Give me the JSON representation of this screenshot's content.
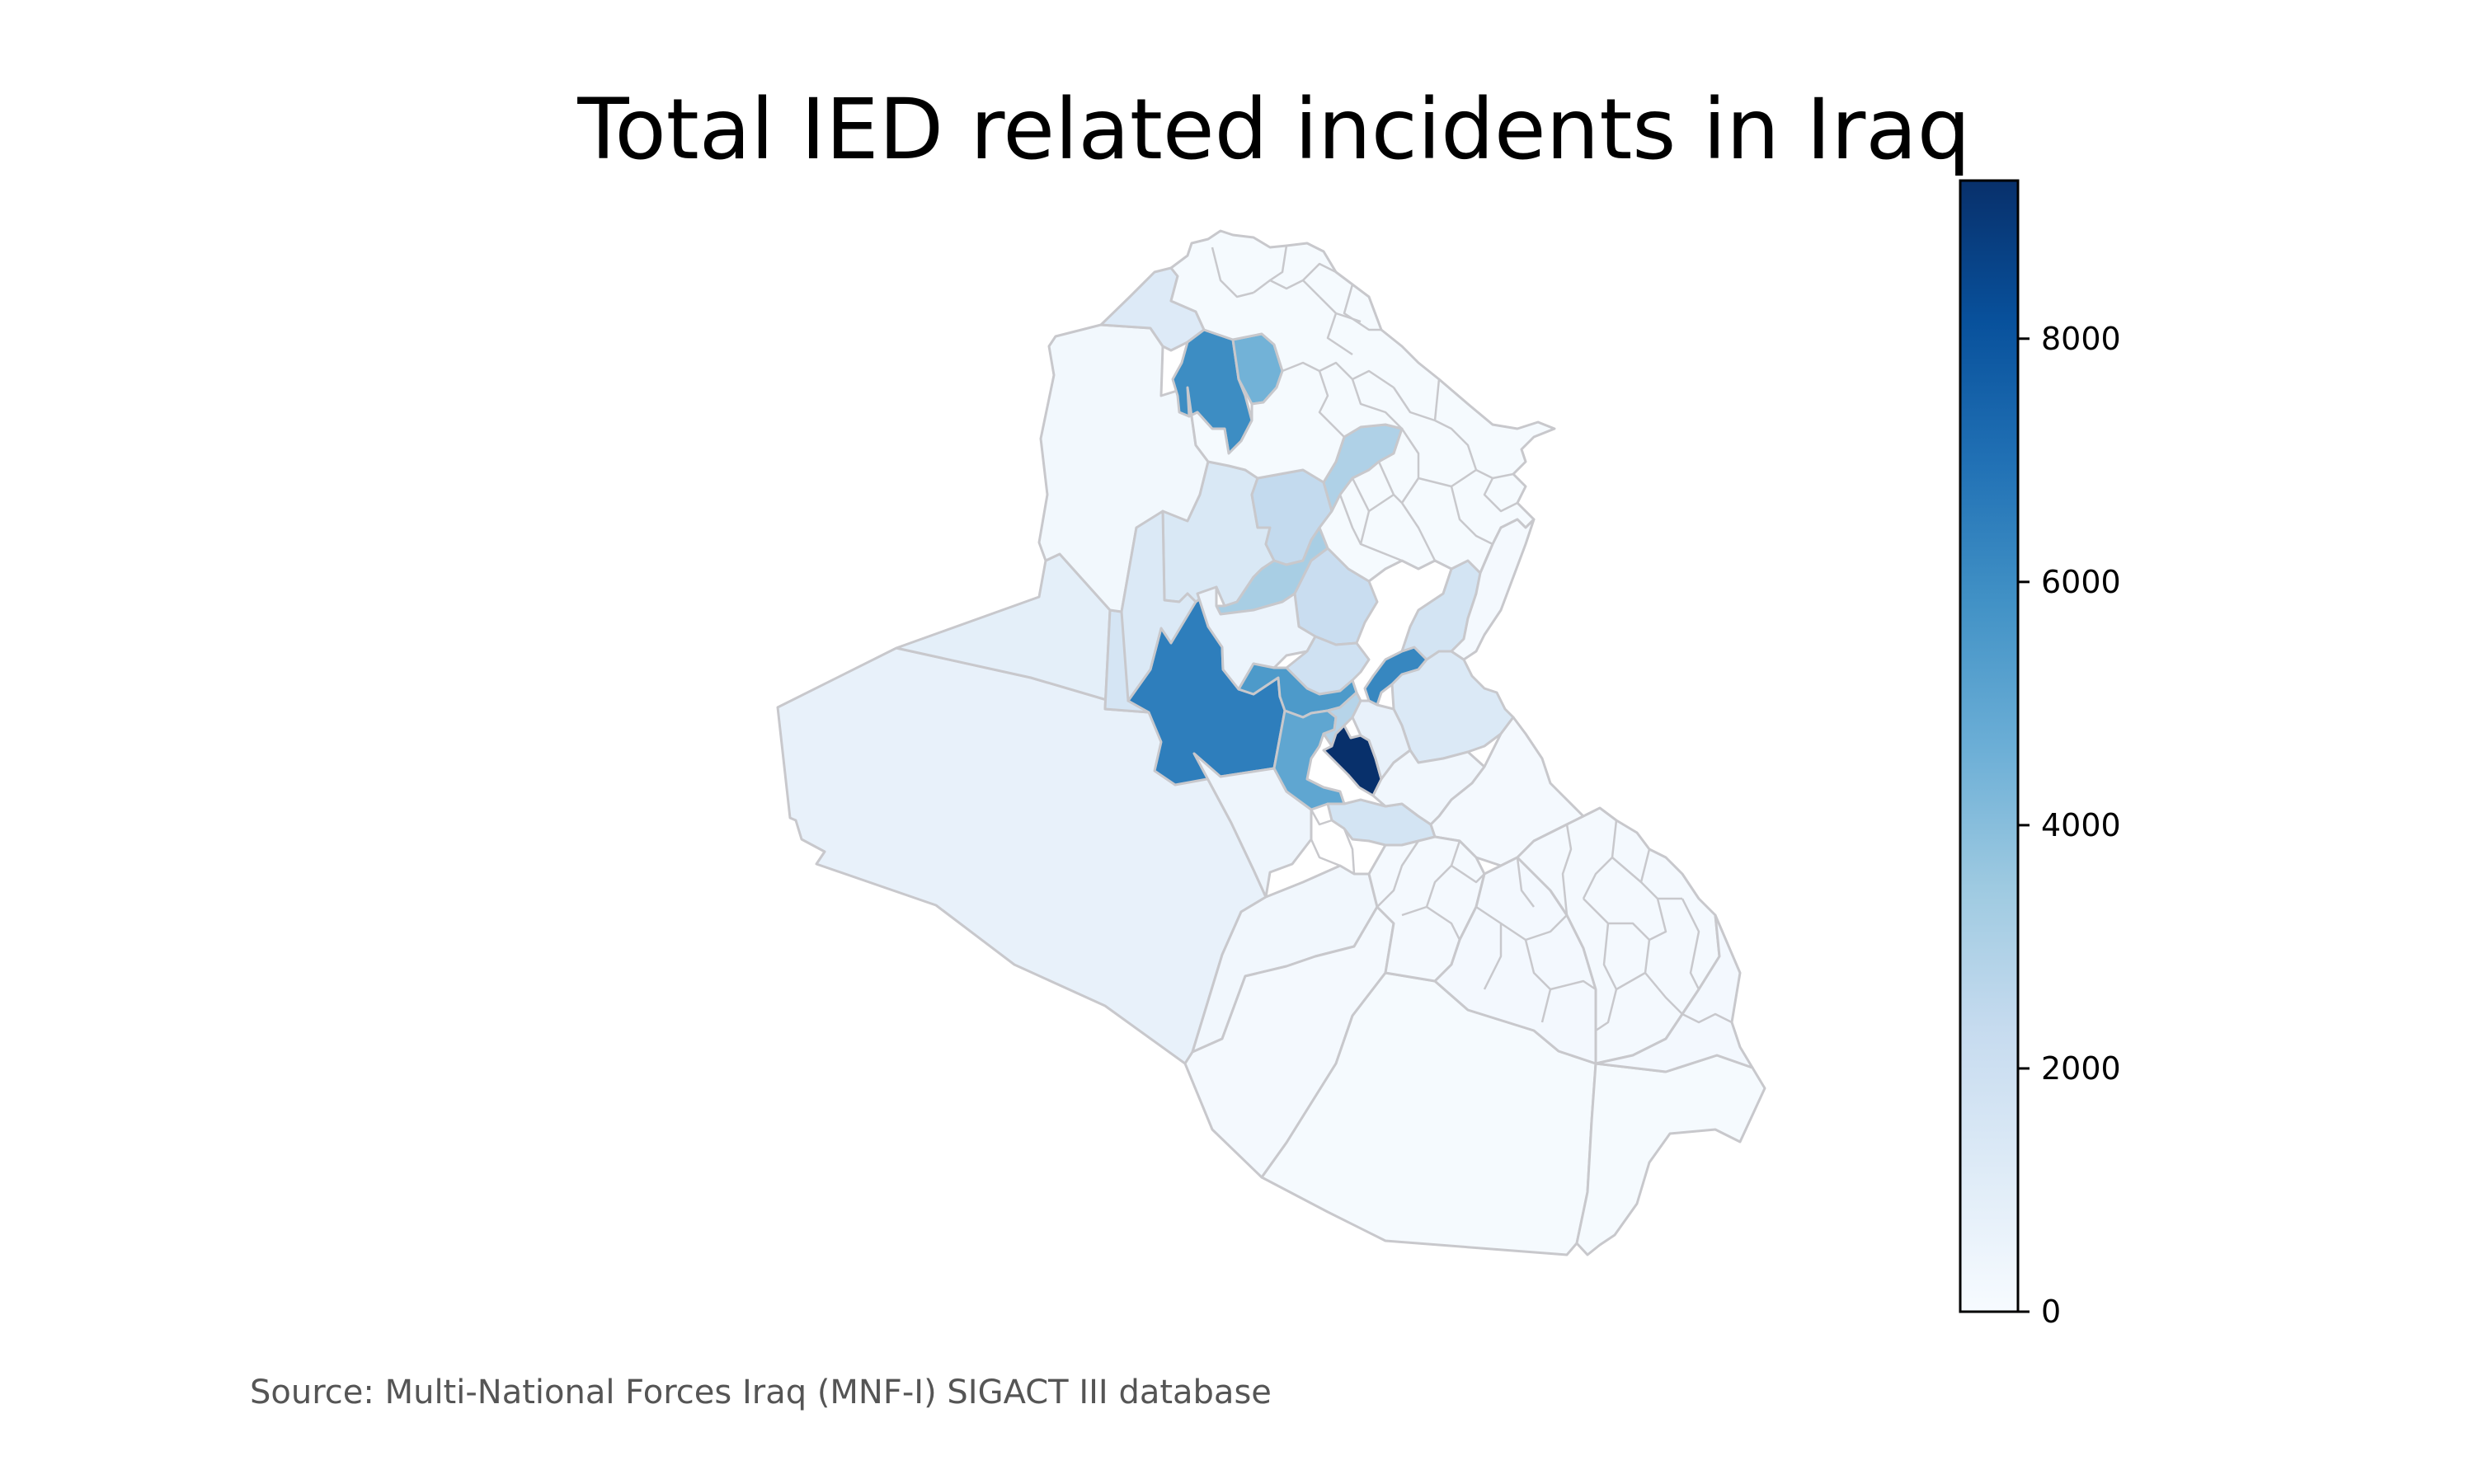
{
  "title": "Total IED related incidents in Iraq",
  "source": "Source: Multi-National Forces Iraq (MNF-I) SIGACT III database",
  "colorbar": {
    "colormap": "Blues",
    "min": 0,
    "max": 9300,
    "ticks": [
      "0",
      "2000",
      "4000",
      "6000",
      "8000"
    ],
    "tick_values": [
      0,
      2000,
      4000,
      6000,
      8000
    ]
  },
  "colors": {
    "border": "#c8c8cc",
    "scale": [
      "#f7fbff",
      "#deebf7",
      "#c6dbef",
      "#9ecae1",
      "#6baed6",
      "#4292c6",
      "#2171b5",
      "#08519c",
      "#08306b"
    ]
  },
  "districts": [
    {
      "id": "anbar-west",
      "value": 700
    },
    {
      "id": "anbar-northwest",
      "value": 900
    },
    {
      "id": "qaim-rawa",
      "value": 1600
    },
    {
      "id": "ramadi-fallujah",
      "value": 6500
    },
    {
      "id": "karbala-west",
      "value": 400
    },
    {
      "id": "nukhayb",
      "value": 300
    },
    {
      "id": "najaf-desert",
      "value": 150
    },
    {
      "id": "muthanna",
      "value": 100
    },
    {
      "id": "basra-south",
      "value": 100
    },
    {
      "id": "ninewa-west",
      "value": 250
    },
    {
      "id": "ninewa-northwest",
      "value": 1200
    },
    {
      "id": "mosul",
      "value": 6000
    },
    {
      "id": "tel-kaif",
      "value": 4500
    },
    {
      "id": "baiji-hatra",
      "value": 1400
    },
    {
      "id": "haditha",
      "value": 1300
    },
    {
      "id": "salah-aldin-west",
      "value": 2400
    },
    {
      "id": "kirkuk-hawija",
      "value": 3000
    },
    {
      "id": "tikrit",
      "value": 3200
    },
    {
      "id": "samarra",
      "value": 2200
    },
    {
      "id": "tharthar",
      "value": 500
    },
    {
      "id": "balad-dujail",
      "value": 1900
    },
    {
      "id": "abu-ghraib",
      "value": 5500
    },
    {
      "id": "baqubah",
      "value": 6200
    },
    {
      "id": "diyala-north",
      "value": 1700
    },
    {
      "id": "khanaqin",
      "value": 1300
    },
    {
      "id": "mahmudiya",
      "value": 5000
    },
    {
      "id": "baghdad-center",
      "value": 9300
    },
    {
      "id": "baghdad-west",
      "value": 2800
    },
    {
      "id": "madain",
      "value": 700
    },
    {
      "id": "hilla-mahawil",
      "value": 1700
    },
    {
      "id": "kut",
      "value": 300
    },
    {
      "id": "kurdistan-region",
      "value": 100
    },
    {
      "id": "sulaymaniyah",
      "value": 150
    },
    {
      "id": "wasit-south",
      "value": 150
    },
    {
      "id": "dhi-qar",
      "value": 200
    },
    {
      "id": "qadisiyah",
      "value": 150
    },
    {
      "id": "maysan",
      "value": 150
    },
    {
      "id": "basra-north",
      "value": 200
    }
  ]
}
